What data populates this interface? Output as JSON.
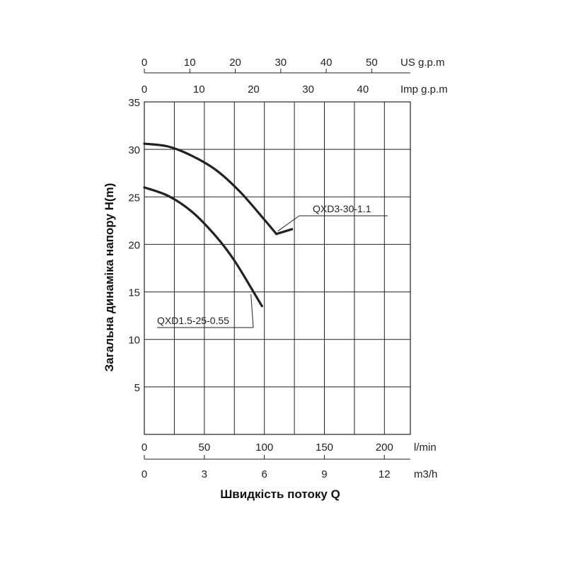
{
  "chart_data": {
    "type": "line",
    "ylabel": "Загальна динаміка напору H(m)",
    "xlabel": "Швидкість потоку Q",
    "ylim": [
      0,
      35
    ],
    "yticks": [
      35,
      30,
      25,
      20,
      15,
      10,
      5
    ],
    "y_origin_label": "0",
    "grid": true,
    "x_axes": [
      {
        "unit": "l/min",
        "range": [
          0,
          221.6
        ],
        "ticks": [
          "0",
          "50",
          "100",
          "150",
          "200"
        ]
      },
      {
        "unit": "m3/h",
        "range": [
          0,
          13.3
        ],
        "ticks": [
          "0",
          "3",
          "6",
          "9",
          "12"
        ]
      },
      {
        "unit": "US g.p.m",
        "range": [
          0,
          58.5
        ],
        "ticks": [
          "0",
          "10",
          "20",
          "30",
          "40",
          "50"
        ]
      },
      {
        "unit": "Imp g.p.m",
        "range": [
          0,
          48.7
        ],
        "ticks": [
          "0",
          "10",
          "20",
          "30",
          "40"
        ]
      }
    ],
    "series": [
      {
        "name": "QXD3-30-1.1",
        "x_unit": "l/min",
        "x": [
          0,
          20,
          40,
          60,
          80,
          100,
          110,
          123
        ],
        "y": [
          30.6,
          30.3,
          29.3,
          27.8,
          25.5,
          22.6,
          21.1,
          21.6
        ]
      },
      {
        "name": "QXD1.5-25-0.55",
        "x_unit": "l/min",
        "x": [
          0,
          20,
          40,
          60,
          75,
          90,
          98
        ],
        "y": [
          26.0,
          25.1,
          23.4,
          20.8,
          18.3,
          15.2,
          13.5
        ]
      }
    ]
  }
}
